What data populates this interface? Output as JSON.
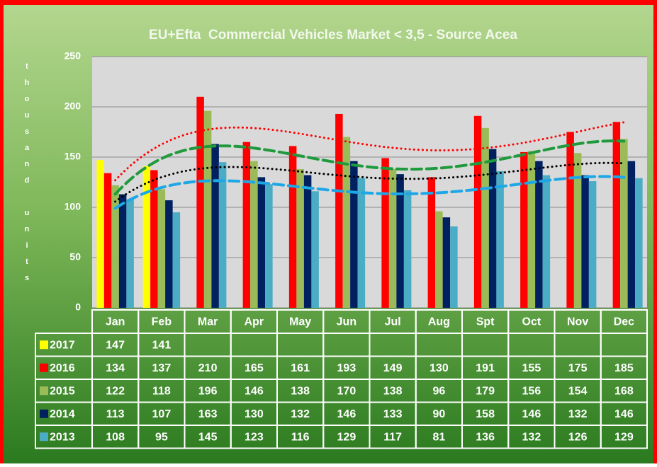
{
  "chart_data": {
    "type": "bar",
    "title": "EU+Efta  Commercial Vehicles Market < 3,5 - Source Acea",
    "y_label": "thousand units",
    "categories": [
      "Jan",
      "Feb",
      "Mar",
      "Apr",
      "May",
      "Jun",
      "Jul",
      "Aug",
      "Spt",
      "Oct",
      "Nov",
      "Dec"
    ],
    "series": [
      {
        "name": "2017",
        "color": "#ffff00",
        "values": [
          147,
          141,
          null,
          null,
          null,
          null,
          null,
          null,
          null,
          null,
          null,
          null
        ]
      },
      {
        "name": "2016",
        "color": "#ff0000",
        "values": [
          134,
          137,
          210,
          165,
          161,
          193,
          149,
          130,
          191,
          155,
          175,
          185
        ],
        "trendline": "polynomial",
        "trendline_color": "#ff0000",
        "trendline_style": "dotted"
      },
      {
        "name": "2015",
        "color": "#9bbb59",
        "values": [
          122,
          118,
          196,
          146,
          138,
          170,
          138,
          96,
          179,
          156,
          154,
          168
        ],
        "trendline": "polynomial",
        "trendline_color": "#1f9a3c",
        "trendline_style": "dashed"
      },
      {
        "name": "2014",
        "color": "#002060",
        "values": [
          113,
          107,
          163,
          130,
          132,
          146,
          133,
          90,
          158,
          146,
          132,
          146
        ],
        "trendline": "polynomial",
        "trendline_color": "#000000",
        "trendline_style": "dotted"
      },
      {
        "name": "2013",
        "color": "#4bacc6",
        "values": [
          108,
          95,
          145,
          123,
          116,
          129,
          117,
          81,
          136,
          132,
          126,
          129
        ],
        "trendline": "polynomial",
        "trendline_color": "#1ea7e6",
        "trendline_style": "dashed"
      }
    ],
    "ylim": [
      0,
      250
    ],
    "yticks": [
      0,
      50,
      100,
      150,
      200,
      250
    ],
    "grid": true,
    "data_table": true
  }
}
